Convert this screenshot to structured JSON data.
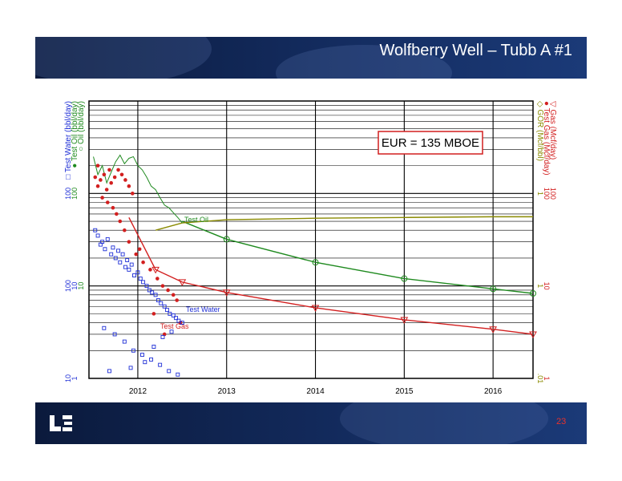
{
  "slide": {
    "title": "Wolfberry Well – Tubb A #1",
    "page_number": "23",
    "colors": {
      "header": "#12295a",
      "accent": "#e8322b"
    }
  },
  "chart_data": {
    "type": "line",
    "x_ticks": [
      "2012",
      "2013",
      "2014",
      "2015",
      "2016"
    ],
    "left_axis": {
      "labels": [
        {
          "text": "Test Water (bbl/day)",
          "symbol": "□",
          "color": "#1f2fd6"
        },
        {
          "text": "Test Oil (bbl/day)",
          "symbol": "●",
          "color": "#1f8a1f"
        },
        {
          "text": "Oil (bbl/day)",
          "symbol": "○",
          "color": "#1f8a1f"
        }
      ],
      "ticks": [
        {
          "level": "100",
          "texts": [
            "100",
            "100"
          ],
          "colors": [
            "#1f2fd6",
            "#1f8a1f"
          ]
        },
        {
          "level": "10",
          "texts": [
            "100",
            "10",
            "10"
          ],
          "colors": [
            "#1f2fd6",
            "#1f2fd6",
            "#1f8a1f"
          ]
        },
        {
          "level": "1",
          "texts": [
            "10",
            "1"
          ],
          "colors": [
            "#1f2fd6",
            "#1f2fd6"
          ]
        }
      ]
    },
    "right_axis": {
      "labels": [
        {
          "text": "GOR (Mcf/bbl)",
          "symbol": "◇",
          "color": "#8a8a00"
        },
        {
          "text": "Test Gas (Mcf/day)",
          "symbol": "●",
          "color": "#d21f1f"
        },
        {
          "text": "Gas (Mcf/day)",
          "symbol": "▽",
          "color": "#d21f1f"
        }
      ],
      "ticks": [
        {
          "level": "100",
          "texts": [
            "1",
            "100",
            "100"
          ],
          "colors": [
            "#8a8a00",
            "#d21f1f",
            "#d21f1f"
          ]
        },
        {
          "level": "10",
          "texts": [
            "1",
            "10"
          ],
          "colors": [
            "#8a8a00",
            "#d21f1f"
          ]
        },
        {
          "level": "1",
          "texts": [
            ".01",
            "1"
          ],
          "colors": [
            "#8a8a00",
            "#d21f1f"
          ]
        }
      ]
    },
    "annotation": "EUR = 135 MBOE",
    "series_labels": [
      {
        "text": "Test Oil",
        "color": "#1f8a1f"
      },
      {
        "text": "Test Water",
        "color": "#1f2fd6"
      },
      {
        "text": "Test Gas",
        "color": "#d21f1f"
      }
    ],
    "series": [
      {
        "key": "oil_forecast",
        "style": "line-markers",
        "marker": "circle",
        "color": "#1f8a1f",
        "x": [
          2012.5,
          2013.0,
          2014.0,
          2015.0,
          2016.0,
          2016.45
        ],
        "y": [
          50,
          32,
          18,
          12,
          9.3,
          8.3
        ]
      },
      {
        "key": "gas_forecast",
        "style": "line-markers",
        "marker": "triangle-down",
        "color": "#d21f1f",
        "x": [
          2011.9,
          2012.2,
          2012.5,
          2013.0,
          2014.0,
          2015.0,
          2016.0,
          2016.45
        ],
        "y": [
          55,
          15,
          11,
          8.5,
          5.8,
          4.3,
          3.4,
          3.0
        ]
      },
      {
        "key": "gor_forecast",
        "style": "line",
        "color": "#8a8a00",
        "x": [
          2012.2,
          2012.5,
          2013.0,
          2014.0,
          2015.0,
          2016.0,
          2016.45
        ],
        "y": [
          40,
          48,
          52,
          54,
          55,
          56,
          56
        ]
      },
      {
        "key": "test_oil",
        "style": "noisy-line",
        "color": "#1f8a1f",
        "x": [
          2011.5,
          2011.55,
          2011.6,
          2011.65,
          2011.7,
          2011.75,
          2011.8,
          2011.85,
          2011.9,
          2011.95,
          2012.0,
          2012.05,
          2012.1,
          2012.15,
          2012.2,
          2012.25,
          2012.3,
          2012.35,
          2012.4,
          2012.45,
          2012.5
        ],
        "y": [
          250,
          160,
          200,
          130,
          170,
          220,
          260,
          210,
          240,
          250,
          200,
          180,
          150,
          120,
          110,
          90,
          75,
          70,
          62,
          55,
          48
        ]
      },
      {
        "key": "test_gas",
        "style": "scatter",
        "marker": "dot",
        "color": "#d21f1f",
        "x": [
          2011.52,
          2011.55,
          2011.58,
          2011.62,
          2011.65,
          2011.7,
          2011.74,
          2011.78,
          2011.82,
          2011.86,
          2011.9,
          2011.94,
          2011.6,
          2011.66,
          2011.72,
          2011.76,
          2011.8,
          2011.9,
          2011.98,
          2012.06,
          2012.14,
          2012.22,
          2012.28,
          2012.34,
          2012.4,
          2012.44,
          2011.55,
          2011.68,
          2011.85,
          2012.02,
          2012.18,
          2012.3,
          2012.48
        ],
        "y": [
          150,
          120,
          140,
          160,
          110,
          130,
          150,
          180,
          160,
          140,
          120,
          100,
          90,
          80,
          70,
          60,
          50,
          30,
          22,
          18,
          15,
          12,
          10,
          9,
          8,
          7,
          200,
          180,
          40,
          25,
          5,
          3,
          4
        ]
      },
      {
        "key": "test_water",
        "style": "scatter",
        "marker": "square",
        "color": "#1f2fd6",
        "x": [
          2011.52,
          2011.55,
          2011.58,
          2011.6,
          2011.63,
          2011.66,
          2011.7,
          2011.72,
          2011.75,
          2011.78,
          2011.8,
          2011.83,
          2011.86,
          2011.88,
          2011.9,
          2011.93,
          2011.96,
          2012.0,
          2012.03,
          2012.06,
          2012.1,
          2012.13,
          2012.16,
          2012.2,
          2012.23,
          2012.26,
          2012.3,
          2012.33,
          2012.36,
          2012.4,
          2012.43,
          2012.46,
          2012.5,
          2011.62,
          2011.74,
          2011.85,
          2011.95,
          2012.05,
          2012.15,
          2012.25,
          2012.35,
          2012.45,
          2012.08,
          2012.18,
          2012.28,
          2012.38,
          2011.68,
          2011.92
        ],
        "y": [
          40,
          35,
          28,
          30,
          25,
          32,
          22,
          26,
          20,
          24,
          18,
          22,
          16,
          19,
          15,
          17,
          13,
          14,
          12,
          11,
          10,
          9,
          8.5,
          8,
          7,
          6.5,
          6,
          5.5,
          5,
          4.8,
          4.5,
          4.2,
          4,
          3.5,
          3,
          2.5,
          2,
          1.8,
          1.6,
          1.4,
          1.2,
          1.1,
          1.5,
          2.2,
          2.8,
          3.2,
          1.2,
          1.3
        ]
      }
    ],
    "x_range": [
      2011.45,
      2016.45
    ],
    "y_range": [
      1,
      1000
    ],
    "y_scale": "log",
    "grid": true
  }
}
